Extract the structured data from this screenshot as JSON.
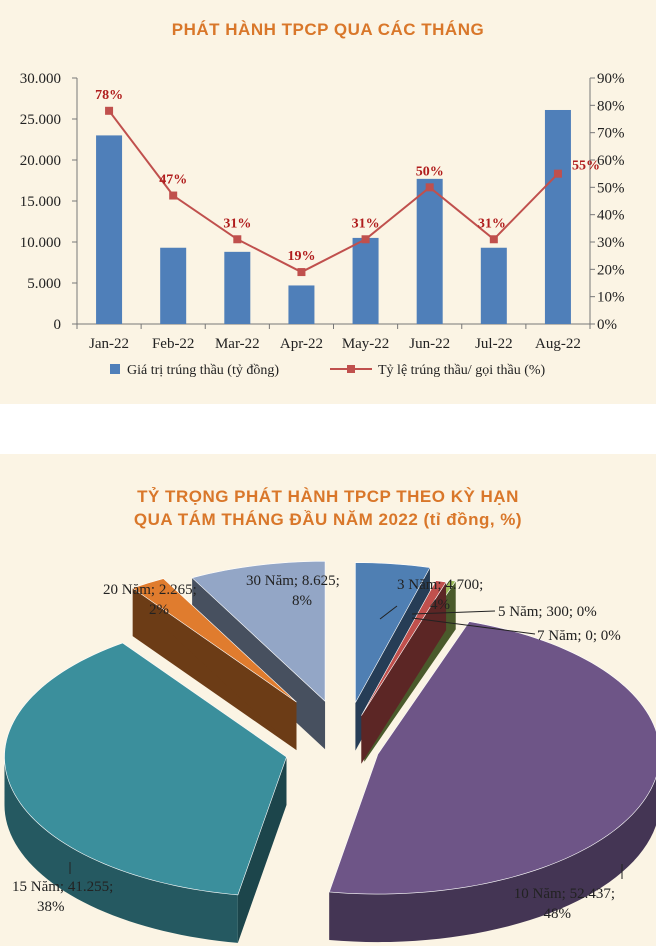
{
  "chart_data": [
    {
      "type": "bar",
      "title": "PHÁT HÀNH TPCP QUA CÁC THÁNG",
      "categories": [
        "Jan-22",
        "Feb-22",
        "Mar-22",
        "Apr-22",
        "May-22",
        "Jun-22",
        "Jul-22",
        "Aug-22"
      ],
      "series": [
        {
          "name": "Giá trị trúng thầu (tỷ đồng)",
          "type": "bar",
          "axis": "left",
          "values": [
            23000,
            9300,
            8800,
            4700,
            10500,
            17700,
            9300,
            26100
          ]
        },
        {
          "name": "Tỷ lệ trúng thầu/ gọi thầu (%)",
          "type": "line",
          "axis": "right",
          "values": [
            78,
            47,
            31,
            19,
            31,
            50,
            31,
            55
          ],
          "labels": [
            "78%",
            "47%",
            "31%",
            "19%",
            "31%",
            "50%",
            "31%",
            "55%"
          ]
        }
      ],
      "y_left": {
        "ylim": [
          0,
          30000
        ],
        "ticks": [
          "0",
          "5.000",
          "10.000",
          "15.000",
          "20.000",
          "25.000",
          "30.000"
        ]
      },
      "y_right": {
        "ylim": [
          0,
          90
        ],
        "ticks": [
          "0%",
          "10%",
          "20%",
          "30%",
          "40%",
          "50%",
          "60%",
          "70%",
          "80%",
          "90%"
        ]
      },
      "legend": "bottom",
      "colors": {
        "bar": "#4f7fb9",
        "line": "#c0504d",
        "data_label": "#b01c1c",
        "title": "#d9772a"
      }
    },
    {
      "type": "pie",
      "title_line1": "TỶ TRỌNG PHÁT HÀNH TPCP THEO KỲ HẠN",
      "title_line2": "QUA TÁM THÁNG ĐẦU NĂM 2022 (tỉ đồng, %)",
      "slices": [
        {
          "name": "3 Năm",
          "value": 4700,
          "percent": 4,
          "label_line1": "3 Năm; 4.700;",
          "label_line2": "4%",
          "color": "#4f7fb3"
        },
        {
          "name": "5 Năm",
          "value": 300,
          "percent": 0,
          "label_line1": "5 Năm; 300; 0%",
          "color": "#c0504d"
        },
        {
          "name": "7 Năm",
          "value": 0,
          "percent": 0,
          "label_line1": "7 Năm; 0; 0%",
          "color": "#9bbb59"
        },
        {
          "name": "10 Năm",
          "value": 52437,
          "percent": 48,
          "label_line1": "10 Năm; 52.437;",
          "label_line2": "48%",
          "color": "#6e5587"
        },
        {
          "name": "15 Năm",
          "value": 41255,
          "percent": 38,
          "label_line1": "15 Năm; 41.255;",
          "label_line2": "38%",
          "color": "#3b8f9c"
        },
        {
          "name": "20 Năm",
          "value": 2265,
          "percent": 2,
          "label_line1": "20 Năm; 2.265;",
          "label_line2": "2%",
          "color": "#e07c2e"
        },
        {
          "name": "30 Năm",
          "value": 8625,
          "percent": 8,
          "label_line1": "30 Năm; 8.625;",
          "label_line2": "8%",
          "color": "#93a6c6"
        }
      ],
      "style": "exploded-3d"
    }
  ]
}
